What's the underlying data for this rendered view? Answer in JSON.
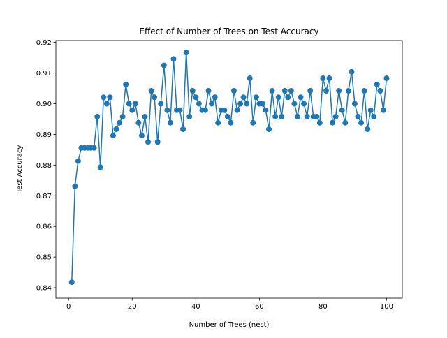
{
  "chart_data": {
    "type": "line",
    "title": "Effect of Number of Trees on Test Accuracy",
    "xlabel": "Number of Trees (nest)",
    "ylabel": "Test Accuracy",
    "xlim": [
      -4,
      104.95
    ],
    "ylim": [
      0.8366,
      0.9206
    ],
    "xticks": [
      0,
      20,
      40,
      60,
      80,
      100
    ],
    "yticks": [
      0.84,
      0.85,
      0.86,
      0.87,
      0.88,
      0.89,
      0.9,
      0.91,
      0.92
    ],
    "xtick_labels": [
      "0",
      "20",
      "40",
      "60",
      "80",
      "100"
    ],
    "ytick_labels": [
      "0.84",
      "0.85",
      "0.86",
      "0.87",
      "0.88",
      "0.89",
      "0.90",
      "0.91",
      "0.92"
    ],
    "grid": false,
    "marker": "circle",
    "color": "#1f77b4",
    "series": [
      {
        "x": [
          1,
          2,
          3,
          4,
          5,
          6,
          7,
          8,
          9,
          10,
          11,
          12,
          13,
          14,
          15,
          16,
          17,
          18,
          19,
          20,
          21,
          22,
          23,
          24,
          25,
          26,
          27,
          28,
          29,
          30,
          31,
          32,
          33,
          34,
          35,
          36,
          37,
          38,
          39,
          40,
          41,
          42,
          43,
          44,
          45,
          46,
          47,
          48,
          49,
          50,
          51,
          52,
          53,
          54,
          55,
          56,
          57,
          58,
          59,
          60,
          61,
          62,
          63,
          64,
          65,
          66,
          67,
          68,
          69,
          70,
          71,
          72,
          73,
          74,
          75,
          76,
          77,
          78,
          79,
          80,
          81,
          82,
          83,
          84,
          85,
          86,
          87,
          88,
          89,
          90,
          91,
          92,
          93,
          94,
          95,
          96,
          97,
          98,
          99,
          100
        ],
        "y": [
          0.8418,
          0.8731,
          0.8813,
          0.8856,
          0.8856,
          0.8856,
          0.8856,
          0.8856,
          0.8958,
          0.8793,
          0.9021,
          0.9,
          0.9021,
          0.8896,
          0.8917,
          0.8938,
          0.8958,
          0.9063,
          0.9,
          0.8979,
          0.9,
          0.8938,
          0.8896,
          0.8958,
          0.8875,
          0.9042,
          0.9021,
          0.8875,
          0.9,
          0.9125,
          0.8979,
          0.8938,
          0.9146,
          0.8979,
          0.8979,
          0.8917,
          0.9167,
          0.8958,
          0.9042,
          0.9021,
          0.9,
          0.8979,
          0.8979,
          0.9042,
          0.9,
          0.9021,
          0.8938,
          0.8979,
          0.8979,
          0.8958,
          0.8938,
          0.9042,
          0.8979,
          0.9,
          0.9021,
          0.9,
          0.9083,
          0.8938,
          0.9021,
          0.9,
          0.9,
          0.8979,
          0.8917,
          0.9042,
          0.8958,
          0.9021,
          0.8958,
          0.9042,
          0.9021,
          0.9042,
          0.9,
          0.8958,
          0.9021,
          0.9,
          0.8958,
          0.9042,
          0.8958,
          0.8958,
          0.8938,
          0.9083,
          0.9042,
          0.9083,
          0.8938,
          0.8958,
          0.9042,
          0.8979,
          0.8938,
          0.9042,
          0.9104,
          0.9,
          0.8958,
          0.8938,
          0.9042,
          0.8917,
          0.8979,
          0.8958,
          0.9063,
          0.9042,
          0.8979,
          0.9083
        ]
      }
    ]
  }
}
